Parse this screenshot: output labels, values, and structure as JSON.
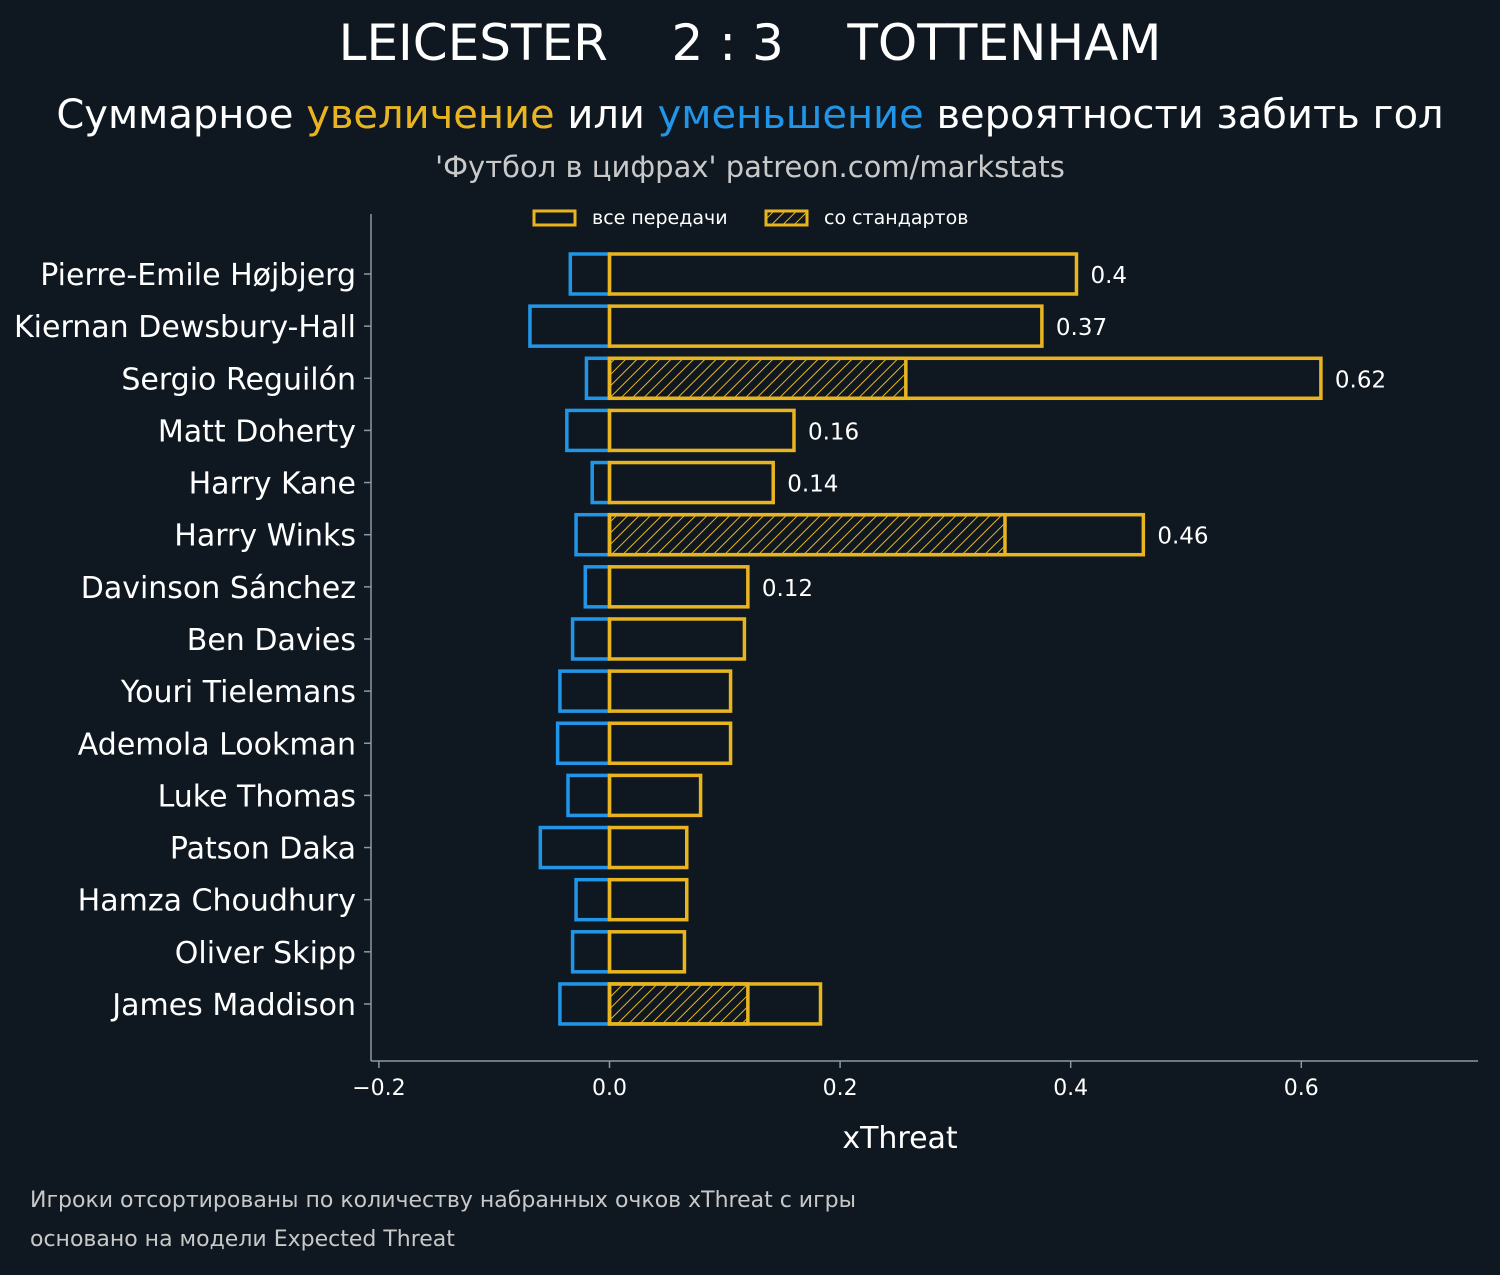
{
  "header": {
    "home_team": "LEICESTER",
    "score": "2 : 3",
    "away_team": "TOTTENHAM",
    "subtitle_part1": "Суммарное ",
    "subtitle_increase": "увеличение",
    "subtitle_part2": " или ",
    "subtitle_decrease": "уменьшение",
    "subtitle_part3": " вероятности забить гол",
    "credit": "'Футбол в цифрах' patreon.com/markstats"
  },
  "footer": {
    "line1": "Игроки отсортированы по количеству набранных очков xThreat с игры",
    "line2": "основано на модели Expected Threat"
  },
  "colors": {
    "background": "#0f1820",
    "increase": "#e8b521",
    "decrease": "#2196e8",
    "axis": "#8a9aa0",
    "text": "#ffffff"
  },
  "chart_data": {
    "type": "bar",
    "orientation": "horizontal",
    "xlabel": "xThreat",
    "xlim": [
      -0.205,
      0.755
    ],
    "xticks": [
      -0.2,
      0.0,
      0.2,
      0.4,
      0.6
    ],
    "xtick_labels": [
      "−0.2",
      "0.0",
      "0.2",
      "0.4",
      "0.6"
    ],
    "legend": {
      "position": "top-center",
      "entries": [
        "все передачи",
        "со стандартов"
      ]
    },
    "categories": [
      "Pierre-Emile Højbjerg",
      "Kiernan Dewsbury-Hall",
      "Sergio Reguilón",
      "Matt Doherty",
      "Harry Kane",
      "Harry Winks",
      "Davinson Sánchez",
      "Ben Davies",
      "Youri Tielemans",
      "Ademola Lookman",
      "Luke Thomas",
      "Patson Daka",
      "Hamza Choudhury",
      "Oliver Skipp",
      "James Maddison"
    ],
    "series": [
      {
        "name": "все передачи (увеличение)",
        "values": [
          0.405,
          0.375,
          0.617,
          0.16,
          0.142,
          0.463,
          0.12,
          0.117,
          0.105,
          0.105,
          0.079,
          0.067,
          0.067,
          0.065,
          0.183
        ]
      },
      {
        "name": "со стандартов",
        "values": [
          0,
          0,
          0.257,
          0,
          0,
          0.343,
          0,
          0,
          0,
          0,
          0,
          0,
          0,
          0,
          0.12
        ]
      },
      {
        "name": "уменьшение",
        "values": [
          -0.034,
          -0.069,
          -0.02,
          -0.037,
          -0.015,
          -0.029,
          -0.021,
          -0.032,
          -0.043,
          -0.045,
          -0.036,
          -0.06,
          -0.029,
          -0.032,
          -0.043
        ]
      }
    ],
    "data_labels": [
      "0.4",
      "0.37",
      "0.62",
      "0.16",
      "0.14",
      "0.46",
      "0.12",
      "",
      "",
      "",
      "",
      "",
      "",
      "",
      ""
    ]
  }
}
